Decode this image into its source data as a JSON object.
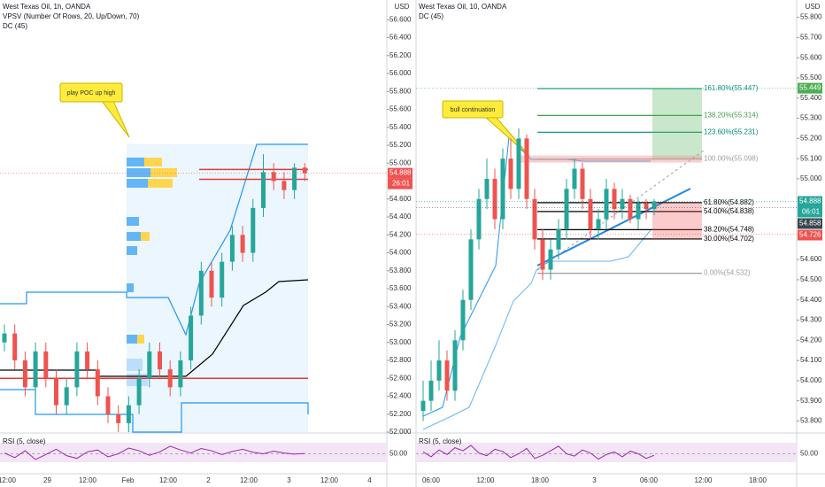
{
  "chart_data": [
    {
      "type": "candlestick",
      "title": "West Texas Oil, 1h, OANDA",
      "indicators": [
        "VPSV (Number Of Rows, 20, Up/Down, 70)",
        "DC (45)"
      ],
      "currency": "USD",
      "up_color": "#26a69a",
      "down_color": "#ef5350",
      "ylim": [
        52.0,
        56.82
      ],
      "yticks": [
        {
          "value": 56.6,
          "label": "56.600"
        },
        {
          "value": 56.4,
          "label": "56.400"
        },
        {
          "value": 56.2,
          "label": "56.200"
        },
        {
          "value": 56.0,
          "label": "56.000"
        },
        {
          "value": 55.8,
          "label": "55.800"
        },
        {
          "value": 55.6,
          "label": "55.600"
        },
        {
          "value": 55.4,
          "label": "55.400"
        },
        {
          "value": 55.2,
          "label": "55.200"
        },
        {
          "value": 55.0,
          "label": "55.000"
        },
        {
          "value": 54.6,
          "label": "54.600"
        },
        {
          "value": 54.4,
          "label": "54.400"
        },
        {
          "value": 54.2,
          "label": "54.200"
        },
        {
          "value": 54.0,
          "label": "54.000"
        },
        {
          "value": 53.8,
          "label": "53.800"
        },
        {
          "value": 53.6,
          "label": "53.600"
        },
        {
          "value": 53.4,
          "label": "53.400"
        },
        {
          "value": 53.2,
          "label": "53.200"
        },
        {
          "value": 53.0,
          "label": "53.000"
        },
        {
          "value": 52.8,
          "label": "52.800"
        },
        {
          "value": 52.6,
          "label": "52.600"
        },
        {
          "value": 52.4,
          "label": "52.400"
        },
        {
          "value": 52.2,
          "label": "52.200"
        },
        {
          "value": 52.0,
          "label": "52.000"
        }
      ],
      "candles": [
        [
          53.0,
          53.2,
          52.9,
          53.1
        ],
        [
          53.1,
          53.2,
          52.7,
          52.8
        ],
        [
          52.8,
          52.9,
          52.4,
          52.5
        ],
        [
          52.5,
          53.0,
          52.4,
          52.9
        ],
        [
          52.9,
          53.0,
          52.5,
          52.6
        ],
        [
          52.6,
          52.7,
          52.2,
          52.3
        ],
        [
          52.3,
          52.6,
          52.2,
          52.5
        ],
        [
          52.5,
          53.0,
          52.4,
          52.9
        ],
        [
          52.9,
          53.0,
          52.6,
          52.7
        ],
        [
          52.7,
          52.8,
          52.3,
          52.4
        ],
        [
          52.4,
          52.5,
          52.1,
          52.2
        ],
        [
          52.2,
          52.3,
          52.0,
          52.1
        ],
        [
          52.1,
          52.4,
          52.0,
          52.3
        ],
        [
          52.3,
          52.7,
          52.2,
          52.6
        ],
        [
          52.6,
          53.0,
          52.5,
          52.9
        ],
        [
          52.9,
          53.0,
          52.6,
          52.7
        ],
        [
          52.7,
          52.8,
          52.4,
          52.5
        ],
        [
          52.5,
          52.9,
          52.4,
          52.8
        ],
        [
          52.8,
          53.4,
          52.7,
          53.3
        ],
        [
          53.3,
          53.9,
          53.2,
          53.8
        ],
        [
          53.8,
          53.9,
          53.4,
          53.5
        ],
        [
          53.5,
          54.0,
          53.4,
          53.9
        ],
        [
          53.9,
          54.3,
          53.8,
          54.2
        ],
        [
          54.2,
          54.3,
          53.9,
          54.0
        ],
        [
          54.0,
          54.6,
          53.9,
          54.5
        ],
        [
          54.5,
          55.1,
          54.4,
          54.9
        ],
        [
          54.9,
          55.0,
          54.7,
          54.8
        ],
        [
          54.8,
          54.9,
          54.6,
          54.7
        ],
        [
          54.7,
          55.0,
          54.6,
          54.95
        ],
        [
          54.95,
          55.0,
          54.8,
          54.888
        ]
      ],
      "poc_levels": [
        54.93,
        54.82,
        52.6
      ],
      "annotation": "play POC up high",
      "price_tags": [
        {
          "value": 54.888,
          "color": "#ef5350",
          "countdown": "26:01"
        }
      ],
      "rsi": {
        "label": "RSI (5, close)",
        "level": {
          "value": 50,
          "label": "50.00"
        },
        "ylim": [
          0,
          100
        ],
        "color": "#9c27b0",
        "values": [
          52,
          40,
          58,
          35,
          48,
          62,
          45,
          38,
          55,
          60,
          42,
          50,
          65,
          58,
          46,
          55,
          70,
          60,
          52,
          64,
          58,
          48,
          56,
          62,
          54,
          50,
          57,
          52,
          49,
          51
        ]
      },
      "time_labels": [
        "12:00",
        "29",
        "12:00",
        "Feb",
        "12:00",
        "2",
        "12:00",
        "3",
        "12:00",
        "4"
      ]
    },
    {
      "type": "candlestick",
      "title": "West Texas Oil, 10, OANDA",
      "indicators": [
        "DC (45)"
      ],
      "currency": "USD",
      "up_color": "#26a69a",
      "down_color": "#ef5350",
      "ylim": [
        53.745,
        55.886
      ],
      "yticks": [
        {
          "value": 55.8,
          "label": "55.800"
        },
        {
          "value": 55.7,
          "label": "55.700"
        },
        {
          "value": 55.6,
          "label": "55.600"
        },
        {
          "value": 55.5,
          "label": "55.500"
        },
        {
          "value": 55.4,
          "label": "55.400"
        },
        {
          "value": 55.3,
          "label": "55.300"
        },
        {
          "value": 55.2,
          "label": "55.200"
        },
        {
          "value": 55.1,
          "label": "55.100"
        },
        {
          "value": 55.0,
          "label": "55.000"
        },
        {
          "value": 54.6,
          "label": "54.600"
        },
        {
          "value": 54.5,
          "label": "54.500"
        },
        {
          "value": 54.4,
          "label": "54.400"
        },
        {
          "value": 54.3,
          "label": "54.300"
        },
        {
          "value": 54.2,
          "label": "54.200"
        },
        {
          "value": 54.1,
          "label": "54.100"
        },
        {
          "value": 54.0,
          "label": "54.000"
        },
        {
          "value": 53.9,
          "label": "53.900"
        },
        {
          "value": 53.8,
          "label": "53.800"
        }
      ],
      "candles": [
        [
          53.85,
          54.0,
          53.8,
          53.9
        ],
        [
          53.9,
          54.1,
          53.85,
          54.0
        ],
        [
          54.0,
          54.2,
          53.95,
          54.1
        ],
        [
          54.1,
          54.15,
          53.9,
          53.95
        ],
        [
          53.95,
          54.25,
          53.9,
          54.2
        ],
        [
          54.2,
          54.45,
          54.15,
          54.4
        ],
        [
          54.4,
          54.75,
          54.35,
          54.7
        ],
        [
          54.7,
          54.95,
          54.65,
          54.9
        ],
        [
          54.9,
          55.1,
          54.85,
          55.0
        ],
        [
          55.0,
          55.05,
          54.75,
          54.8
        ],
        [
          54.8,
          55.15,
          54.75,
          55.1
        ],
        [
          55.1,
          55.2,
          54.9,
          54.95
        ],
        [
          54.95,
          55.25,
          54.9,
          55.2
        ],
        [
          55.2,
          55.22,
          54.85,
          54.9
        ],
        [
          54.9,
          54.95,
          54.65,
          54.7
        ],
        [
          54.7,
          54.75,
          54.5,
          54.55
        ],
        [
          54.55,
          54.7,
          54.5,
          54.65
        ],
        [
          54.65,
          54.8,
          54.6,
          54.75
        ],
        [
          54.75,
          55.0,
          54.7,
          54.95
        ],
        [
          54.95,
          55.1,
          54.9,
          55.05
        ],
        [
          55.05,
          55.08,
          54.85,
          54.9
        ],
        [
          54.9,
          54.95,
          54.7,
          54.75
        ],
        [
          54.75,
          54.85,
          54.7,
          54.8
        ],
        [
          54.8,
          55.0,
          54.75,
          54.95
        ],
        [
          54.95,
          54.98,
          54.8,
          54.85
        ],
        [
          54.85,
          54.95,
          54.8,
          54.9
        ],
        [
          54.9,
          54.92,
          54.78,
          54.8
        ],
        [
          54.8,
          54.9,
          54.75,
          54.88
        ],
        [
          54.88,
          54.9,
          54.8,
          54.85
        ],
        [
          54.85,
          54.9,
          54.82,
          54.888
        ]
      ],
      "fib_levels": [
        {
          "label": "161.80%(55.447)",
          "value": 55.447,
          "color": "#089981"
        },
        {
          "label": "138.20%(55.314)",
          "value": 55.314,
          "color": "#43a047"
        },
        {
          "label": "123.60%(55.231)",
          "value": 55.231,
          "color": "#00897b"
        },
        {
          "label": "100.00%(55.098)",
          "value": 55.098,
          "color": "#9e9e9e"
        },
        {
          "label": "61.80%(54.882)",
          "value": 54.882,
          "color": "#000000"
        },
        {
          "label": "54.00%(54.838)",
          "value": 54.838,
          "color": "#000000"
        },
        {
          "label": "38.20%(54.748)",
          "value": 54.748,
          "color": "#000000"
        },
        {
          "label": "30.00%(54.702)",
          "value": 54.702,
          "color": "#000000"
        },
        {
          "label": "0.00%(54.532)",
          "value": 54.532,
          "color": "#9e9e9e"
        }
      ],
      "annotation": "bull continuation",
      "price_tags": [
        {
          "value": 55.449,
          "color": "#4caf50"
        },
        {
          "value": 54.888,
          "color": "#26a69a",
          "countdown": "06:01"
        },
        {
          "value": 54.858,
          "color": "#37474f"
        },
        {
          "value": 54.726,
          "color": "#ef5350"
        }
      ],
      "rsi": {
        "label": "RSI (5, close)",
        "level": {
          "value": 50,
          "label": "50.00"
        },
        "ylim": [
          0,
          100
        ],
        "color": "#9c27b0",
        "values": [
          55,
          42,
          60,
          48,
          66,
          58,
          72,
          52,
          45,
          62,
          56,
          40,
          50,
          64,
          38,
          46,
          58,
          70,
          50,
          44,
          60,
          52,
          36,
          48,
          55,
          42,
          57,
          50,
          38,
          46
        ]
      },
      "time_labels": [
        "06:00",
        "12:00",
        "18:00",
        "3",
        "06:00",
        "12:00",
        "18:00"
      ]
    }
  ]
}
